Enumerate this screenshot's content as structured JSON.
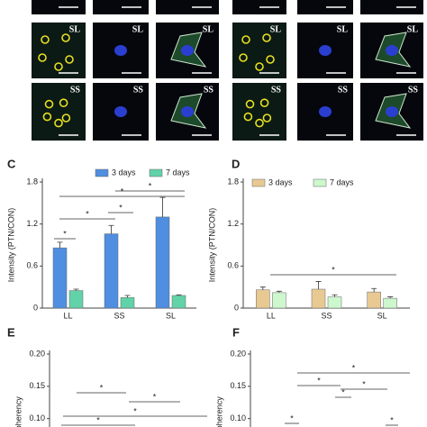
{
  "micrographs": {
    "labels": [
      [
        "SL",
        "SL",
        "SL",
        "SL",
        "SL",
        "SL"
      ],
      [
        "SS",
        "SS",
        "SS",
        "SS",
        "SS",
        "SS"
      ]
    ]
  },
  "chart_data": [
    {
      "type": "bar",
      "label": "C",
      "ylabel": "Intensity (PTN/CON)",
      "categories": [
        "LL",
        "SS",
        "SL"
      ],
      "series": [
        {
          "name": "3 days",
          "color": "#4f8ee0",
          "values": [
            0.86,
            1.06,
            1.3
          ],
          "errors": [
            0.08,
            0.12,
            0.28
          ]
        },
        {
          "name": "7 days",
          "color": "#62d2a8",
          "values": [
            0.25,
            0.15,
            0.18
          ],
          "errors": [
            0.02,
            0.03,
            0.01
          ]
        }
      ],
      "ylim": [
        0,
        1.8
      ],
      "yticks": [
        0,
        0.6,
        1.2,
        1.8
      ],
      "annotations": [
        "*",
        "*",
        "*",
        "*",
        "*"
      ]
    },
    {
      "type": "bar",
      "label": "D",
      "ylabel": "Intensity (PTN/CON)",
      "categories": [
        "LL",
        "SS",
        "SL"
      ],
      "series": [
        {
          "name": "3 days",
          "color": "#e8c992",
          "values": [
            0.26,
            0.27,
            0.23
          ],
          "errors": [
            0.04,
            0.11,
            0.05
          ]
        },
        {
          "name": "7 days",
          "color": "#cdf7cd",
          "values": [
            0.22,
            0.16,
            0.14
          ],
          "errors": [
            0.02,
            0.03,
            0.02
          ]
        }
      ],
      "ylim": [
        0,
        1.8
      ],
      "yticks": [
        0,
        0.6,
        1.2,
        1.8
      ],
      "annotations": [
        "*"
      ]
    },
    {
      "type": "bar",
      "label": "E",
      "ylabel": "Coherency",
      "ylim": [
        0.08,
        0.2
      ],
      "yticks": [
        {
          "value": 0.2,
          "label": "0.20"
        },
        0.15,
        {
          "value": 0.1,
          "label": "0.10"
        }
      ],
      "annotations": [
        "*",
        "*",
        "*",
        "*"
      ]
    },
    {
      "type": "bar",
      "label": "F",
      "ylabel": "Coherency",
      "ylim": [
        0.08,
        0.2
      ],
      "yticks": [
        {
          "value": 0.2,
          "label": "0.20"
        },
        0.15,
        {
          "value": 0.1,
          "label": "0.10"
        }
      ],
      "annotations": [
        "*",
        "*",
        "*",
        "*",
        "*",
        "*"
      ]
    }
  ]
}
